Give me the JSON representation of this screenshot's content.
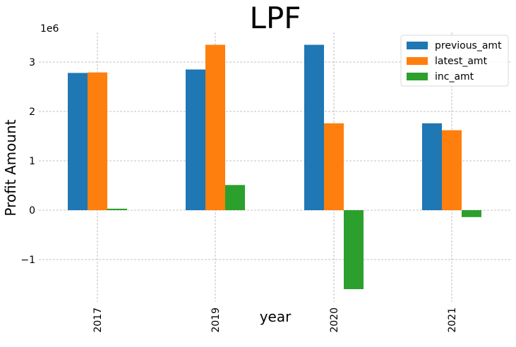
{
  "chart_data": {
    "type": "bar",
    "title": "LPF",
    "xlabel": "year",
    "ylabel": "Profit Amount",
    "y_offset_label": "1e6",
    "categories": [
      "2017",
      "2019",
      "2020",
      "2021"
    ],
    "series": [
      {
        "name": "previous_amt",
        "color": "#1f77b4",
        "values": [
          2780000,
          2850000,
          3350000,
          1760000
        ]
      },
      {
        "name": "latest_amt",
        "color": "#ff7f0e",
        "values": [
          2790000,
          3350000,
          1760000,
          1620000
        ]
      },
      {
        "name": "inc_amt",
        "color": "#2ca02c",
        "values": [
          30000,
          510000,
          -1600000,
          -140000
        ]
      }
    ],
    "ylim": [
      -1850000,
      3600000
    ],
    "yticks": [
      -1,
      0,
      1,
      2,
      3
    ],
    "ytick_labels": [
      "−1",
      "0",
      "1",
      "2",
      "3"
    ],
    "grid": true,
    "legend_position": "top-right"
  }
}
